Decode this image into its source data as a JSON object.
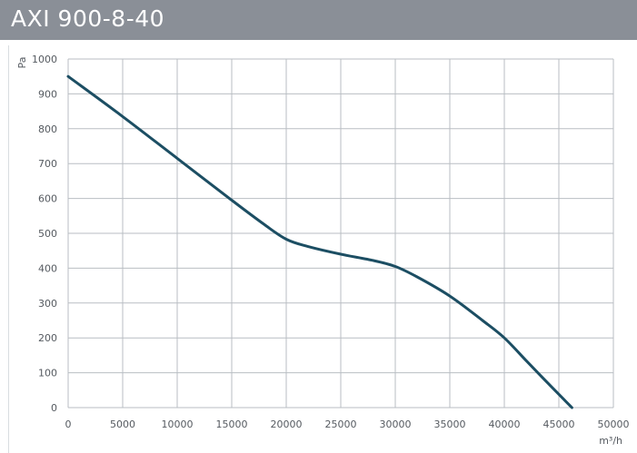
{
  "header": {
    "title": "AXI 900-8-40"
  },
  "colors": {
    "header_bg": "#8a8f97",
    "curve": "#1c4e63",
    "grid": "#b9bec3"
  },
  "chart_data": {
    "type": "line",
    "title": "AXI 900-8-40",
    "xlabel": "m³/h",
    "ylabel": "Pa",
    "xlim": [
      0,
      50000
    ],
    "ylim": [
      0,
      1000
    ],
    "xticks": [
      0,
      5000,
      10000,
      15000,
      20000,
      25000,
      30000,
      35000,
      40000,
      45000,
      50000
    ],
    "yticks": [
      0,
      100,
      200,
      300,
      400,
      500,
      600,
      700,
      800,
      900,
      1000
    ],
    "grid": true,
    "series": [
      {
        "x": [
          0,
          5000,
          10000,
          15000,
          18000,
          20000,
          22000,
          25000,
          28000,
          30000,
          32000,
          35000,
          38000,
          40000,
          42000,
          44000,
          46200
        ],
        "y": [
          950,
          835,
          715,
          595,
          525,
          483,
          462,
          440,
          422,
          405,
          375,
          320,
          250,
          200,
          135,
          70,
          0
        ]
      }
    ]
  }
}
